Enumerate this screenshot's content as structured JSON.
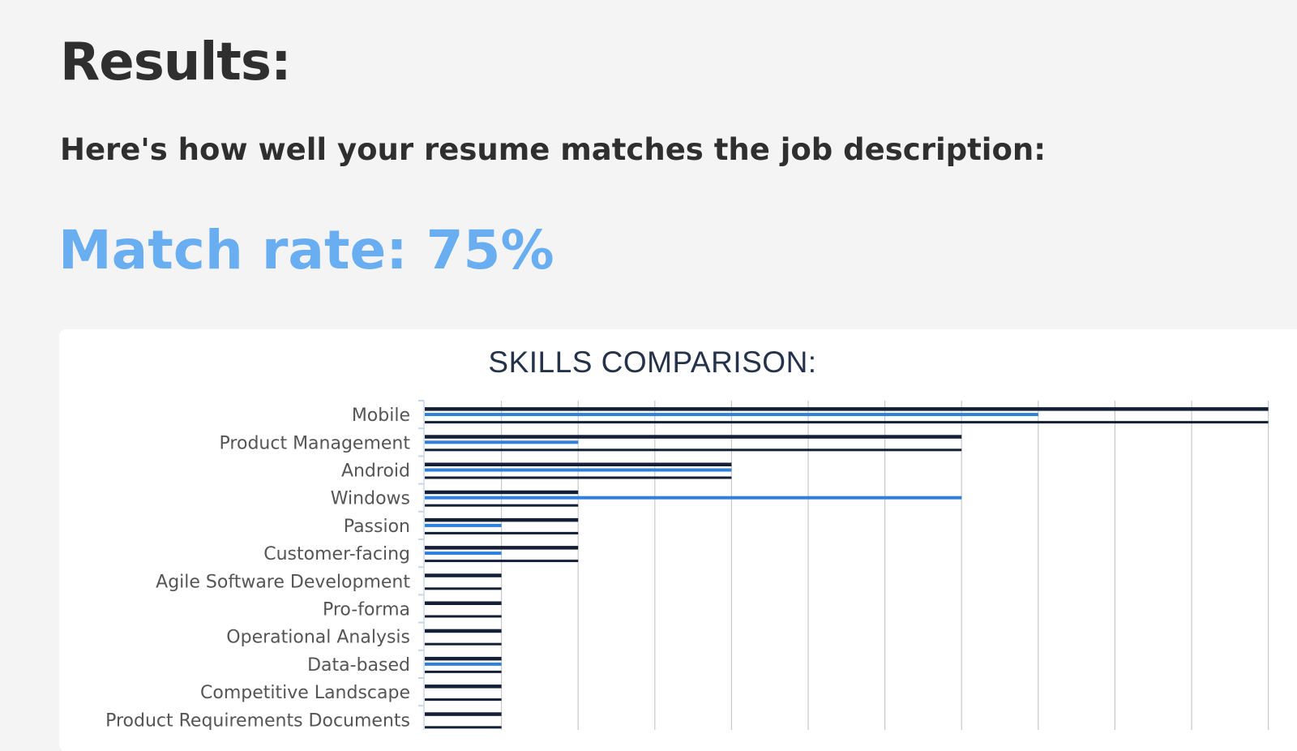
{
  "page": {
    "title": "Results:",
    "intro": "Here's how well your resume matches the job description:",
    "match_rate": "Match rate: 75%"
  },
  "colors": {
    "job_bar": "#132037",
    "resume_bar": "#2f7fdc",
    "match_text": "#6aaef2",
    "grid": "#c8c8c8"
  },
  "chart_data": {
    "type": "bar",
    "orientation": "horizontal",
    "title": "SKILLS COMPARISON:",
    "categories": [
      "Mobile",
      "Product Management",
      "Android",
      "Windows",
      "Passion",
      "Customer-facing",
      "Agile Software Development",
      "Pro-forma",
      "Operational Analysis",
      "Data-based",
      "Competitive Landscape",
      "Product Requirements Documents"
    ],
    "series": [
      {
        "values": [
          11,
          7,
          4,
          2,
          2,
          2,
          1,
          1,
          1,
          1,
          1,
          1
        ]
      },
      {
        "values": [
          8,
          2,
          4,
          7,
          1,
          1,
          0,
          0,
          0,
          1,
          0,
          0
        ]
      }
    ],
    "xlim": [
      0,
      11
    ],
    "grid": true
  }
}
